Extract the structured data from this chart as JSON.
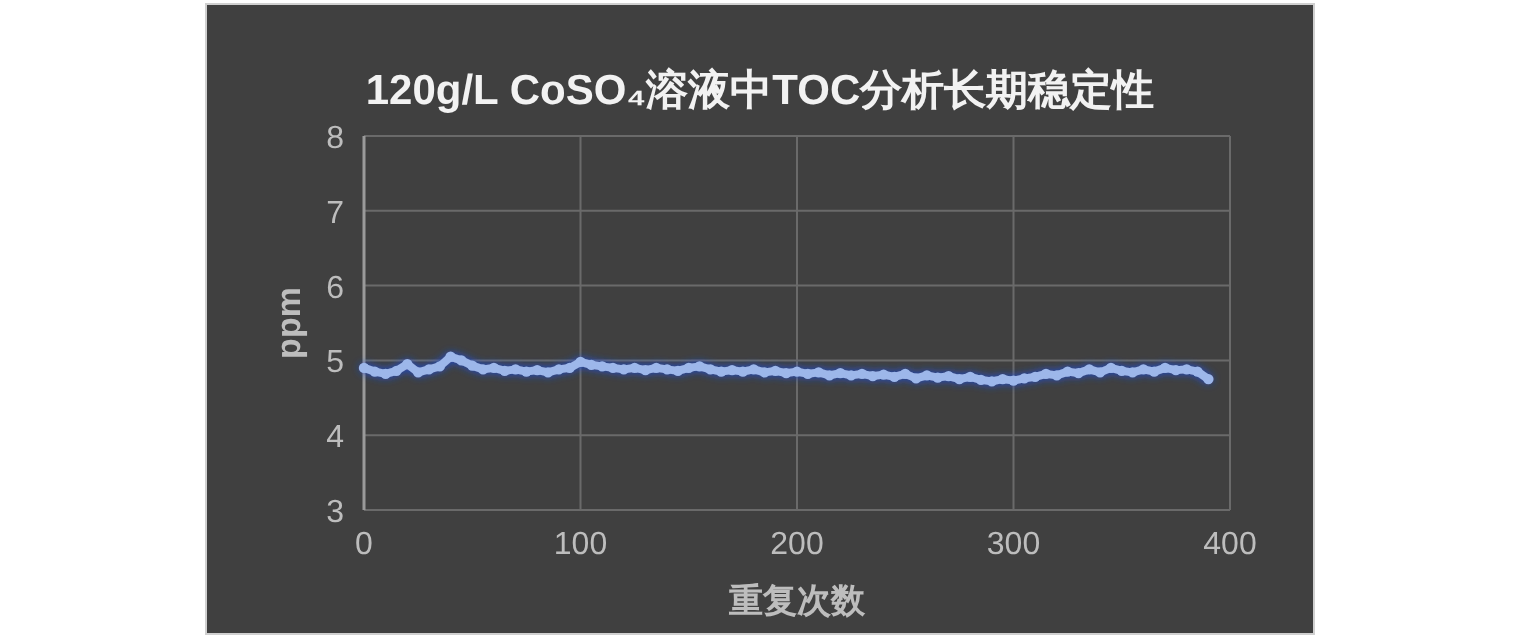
{
  "chart_data": {
    "type": "line",
    "title": "120g/L CoSO₄溶液中TOC分析长期稳定性",
    "xlabel": "重复次数",
    "ylabel": "ppm",
    "xlim": [
      0,
      400
    ],
    "xticks": [
      0,
      100,
      200,
      300,
      400
    ],
    "ylim": [
      3,
      8
    ],
    "yticks": [
      3,
      4,
      5,
      6,
      7,
      8
    ],
    "grid": true,
    "marker": "circle",
    "line_style": "solid",
    "series": [
      {
        "color": "#9db7ea",
        "x": [
          0,
          5,
          10,
          15,
          20,
          25,
          30,
          35,
          40,
          45,
          50,
          55,
          60,
          65,
          70,
          75,
          80,
          85,
          90,
          95,
          100,
          105,
          110,
          115,
          120,
          125,
          130,
          135,
          140,
          145,
          150,
          155,
          160,
          165,
          170,
          175,
          180,
          185,
          190,
          195,
          200,
          205,
          210,
          215,
          220,
          225,
          230,
          235,
          240,
          245,
          250,
          255,
          260,
          265,
          270,
          275,
          280,
          285,
          290,
          295,
          300,
          305,
          310,
          315,
          320,
          325,
          330,
          335,
          340,
          345,
          350,
          355,
          360,
          365,
          370,
          375,
          380,
          385,
          390
        ],
        "values": [
          4.9,
          4.85,
          4.82,
          4.86,
          4.95,
          4.84,
          4.88,
          4.92,
          5.05,
          5.0,
          4.93,
          4.88,
          4.9,
          4.86,
          4.88,
          4.85,
          4.87,
          4.84,
          4.88,
          4.9,
          4.98,
          4.94,
          4.92,
          4.9,
          4.88,
          4.9,
          4.87,
          4.9,
          4.88,
          4.86,
          4.9,
          4.92,
          4.88,
          4.85,
          4.87,
          4.85,
          4.88,
          4.84,
          4.86,
          4.83,
          4.85,
          4.82,
          4.84,
          4.8,
          4.83,
          4.8,
          4.82,
          4.79,
          4.81,
          4.78,
          4.82,
          4.76,
          4.8,
          4.77,
          4.79,
          4.75,
          4.78,
          4.74,
          4.72,
          4.75,
          4.73,
          4.76,
          4.78,
          4.82,
          4.8,
          4.85,
          4.83,
          4.88,
          4.84,
          4.9,
          4.86,
          4.84,
          4.88,
          4.85,
          4.9,
          4.87,
          4.88,
          4.85,
          4.75
        ]
      }
    ]
  }
}
